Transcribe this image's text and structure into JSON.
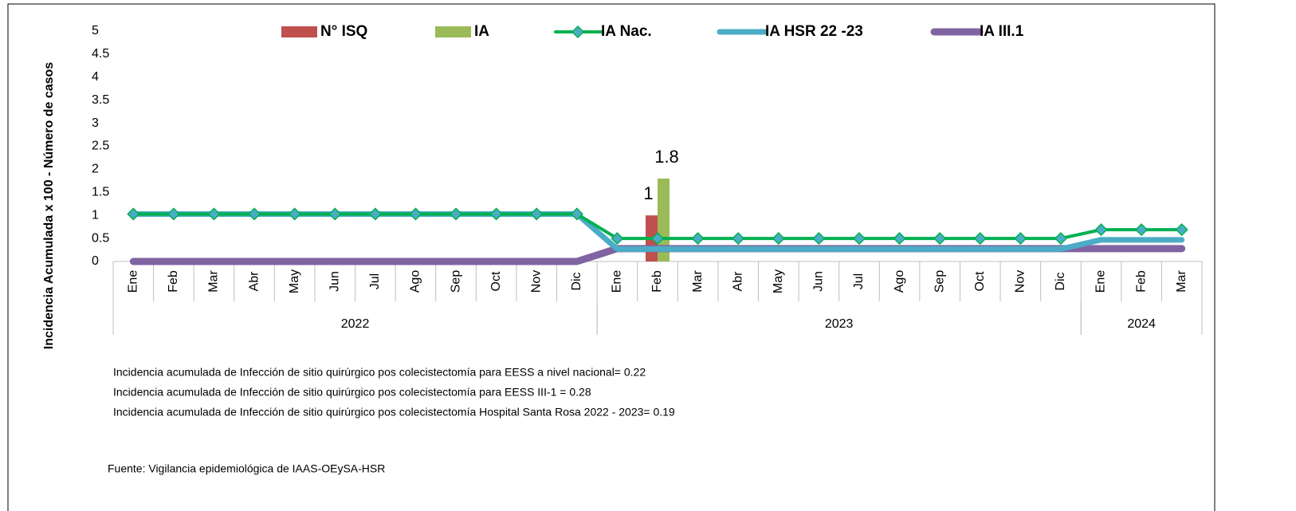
{
  "chart_data": {
    "type": "combo",
    "y_label": "Incidencia Acumulada x 100 - Número de casos",
    "categories": [
      "Ene",
      "Feb",
      "Mar",
      "Abr",
      "May",
      "Jun",
      "Jul",
      "Ago",
      "Sep",
      "Oct",
      "Nov",
      "Dic",
      "Ene",
      "Feb",
      "Mar",
      "Abr",
      "May",
      "Jun",
      "Jul",
      "Ago",
      "Sep",
      "Oct",
      "Nov",
      "Dic",
      "Ene",
      "Feb",
      "Mar"
    ],
    "groups": [
      {
        "name": "2022",
        "size": 12
      },
      {
        "name": "2023",
        "size": 12
      },
      {
        "name": "2024",
        "size": 3
      }
    ],
    "ylim": [
      0,
      5
    ],
    "yticks": [
      0,
      0.5,
      1,
      1.5,
      2,
      2.5,
      3,
      3.5,
      4,
      4.5,
      5
    ],
    "series": [
      {
        "name": "N° ISQ",
        "kind": "bar",
        "color": "#c0504d",
        "values": [
          null,
          null,
          null,
          null,
          null,
          null,
          null,
          null,
          null,
          null,
          null,
          null,
          null,
          1,
          null,
          null,
          null,
          null,
          null,
          null,
          null,
          null,
          null,
          null,
          null,
          null,
          null
        ]
      },
      {
        "name": "IA",
        "kind": "bar",
        "color": "#9bbb59",
        "values": [
          null,
          null,
          null,
          null,
          null,
          null,
          null,
          null,
          null,
          null,
          null,
          null,
          null,
          1.8,
          null,
          null,
          null,
          null,
          null,
          null,
          null,
          null,
          null,
          null,
          null,
          null,
          null
        ]
      },
      {
        "name": "IA III.1",
        "kind": "line",
        "color": "#8064a2",
        "values": [
          0,
          0,
          0,
          0,
          0,
          0,
          0,
          0,
          0,
          0,
          0,
          0,
          0.28,
          0.28,
          0.28,
          0.28,
          0.28,
          0.28,
          0.28,
          0.28,
          0.28,
          0.28,
          0.28,
          0.28,
          0.28,
          0.28,
          0.28
        ]
      },
      {
        "name": "IA  HSR 22 -23",
        "kind": "line",
        "color": "#4bacc6",
        "values": [
          1.03,
          1.03,
          1.03,
          1.03,
          1.03,
          1.03,
          1.03,
          1.03,
          1.03,
          1.03,
          1.03,
          1.03,
          0.27,
          0.27,
          0.27,
          0.27,
          0.27,
          0.27,
          0.27,
          0.27,
          0.27,
          0.27,
          0.27,
          0.27,
          0.47,
          0.47,
          0.47
        ]
      },
      {
        "name": "IA  Nac.",
        "kind": "line",
        "marker": true,
        "color": "#00b050",
        "values": [
          1.03,
          1.03,
          1.03,
          1.03,
          1.03,
          1.03,
          1.03,
          1.03,
          1.03,
          1.03,
          1.03,
          1.03,
          0.5,
          0.5,
          0.5,
          0.5,
          0.5,
          0.5,
          0.5,
          0.5,
          0.5,
          0.5,
          0.5,
          0.5,
          0.69,
          0.69,
          0.69
        ]
      }
    ],
    "legend_order": [
      0,
      1,
      4,
      3,
      2
    ],
    "notes": [
      "Incidencia acumulada de Infección de sitio quirúrgico pos colecistectomía para EESS a nivel nacional= 0.22",
      "Incidencia acumulada de Infección de sitio quirúrgico pos colecistectomía para EESS III-1 = 0.28",
      "Incidencia acumulada de Infección de sitio quirúrgico pos colecistectomía Hospital Santa Rosa 2022 - 2023= 0.19"
    ],
    "source": "Fuente: Vigilancia epidemiológica de IAAS-OEySA-HSR"
  }
}
